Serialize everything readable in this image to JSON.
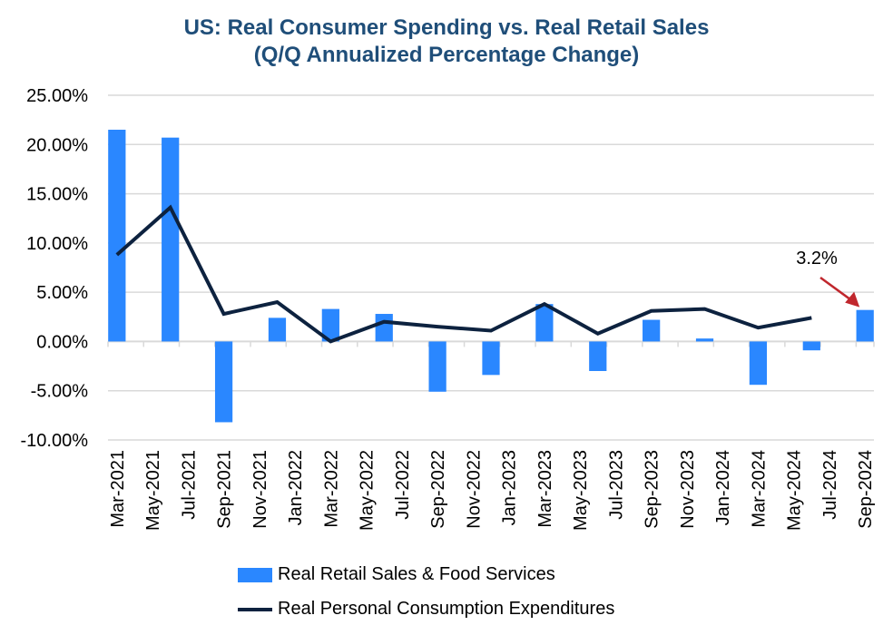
{
  "chart_data": {
    "type": "bar+line",
    "title": [
      "US: Real Consumer Spending vs. Real Retail Sales",
      "(Q/Q Annualized Percentage Change)"
    ],
    "xlabel": "",
    "ylabel": "",
    "ylim": [
      -10,
      25
    ],
    "yticks": [
      25,
      20,
      15,
      10,
      5,
      0,
      -5,
      -10
    ],
    "ytick_labels": [
      "25.00%",
      "20.00%",
      "15.00%",
      "10.00%",
      "5.00%",
      "0.00%",
      "-5.00%",
      "-10.00%"
    ],
    "grid": true,
    "legend_position": "bottom",
    "x_tick_labels": [
      "Mar-2021",
      "May-2021",
      "Jul-2021",
      "Sep-2021",
      "Nov-2021",
      "Jan-2022",
      "Mar-2022",
      "May-2022",
      "Jul-2022",
      "Sep-2022",
      "Nov-2022",
      "Jan-2023",
      "Mar-2023",
      "May-2023",
      "Jul-2023",
      "Sep-2023",
      "Nov-2023",
      "Jan-2024",
      "Mar-2024",
      "May-2024",
      "Jul-2024",
      "Sep-2024"
    ],
    "x": [
      "Mar-2021",
      "Jun-2021",
      "Sep-2021",
      "Dec-2021",
      "Mar-2022",
      "Jun-2022",
      "Sep-2022",
      "Dec-2022",
      "Mar-2023",
      "Jun-2023",
      "Sep-2023",
      "Dec-2023",
      "Mar-2024",
      "Jun-2024",
      "Sep-2024"
    ],
    "series": [
      {
        "name": "Real Retail Sales & Food Services",
        "type": "bar",
        "color": "#2a87ff",
        "values": [
          21.5,
          20.7,
          -8.2,
          2.4,
          3.3,
          2.8,
          -5.1,
          -3.4,
          3.8,
          -3.0,
          2.2,
          0.3,
          -4.4,
          -0.9,
          3.2
        ]
      },
      {
        "name": "Real Personal Consumption Expenditures",
        "type": "line",
        "color": "#0d223f",
        "values": [
          8.8,
          13.6,
          2.8,
          4.0,
          0.0,
          2.0,
          1.5,
          1.1,
          3.8,
          0.8,
          3.1,
          3.3,
          1.4,
          2.4,
          null
        ]
      }
    ],
    "annotations": [
      {
        "text": "3.2%",
        "target": "Sep-2024",
        "arrow_color": "#c0272d"
      }
    ]
  }
}
